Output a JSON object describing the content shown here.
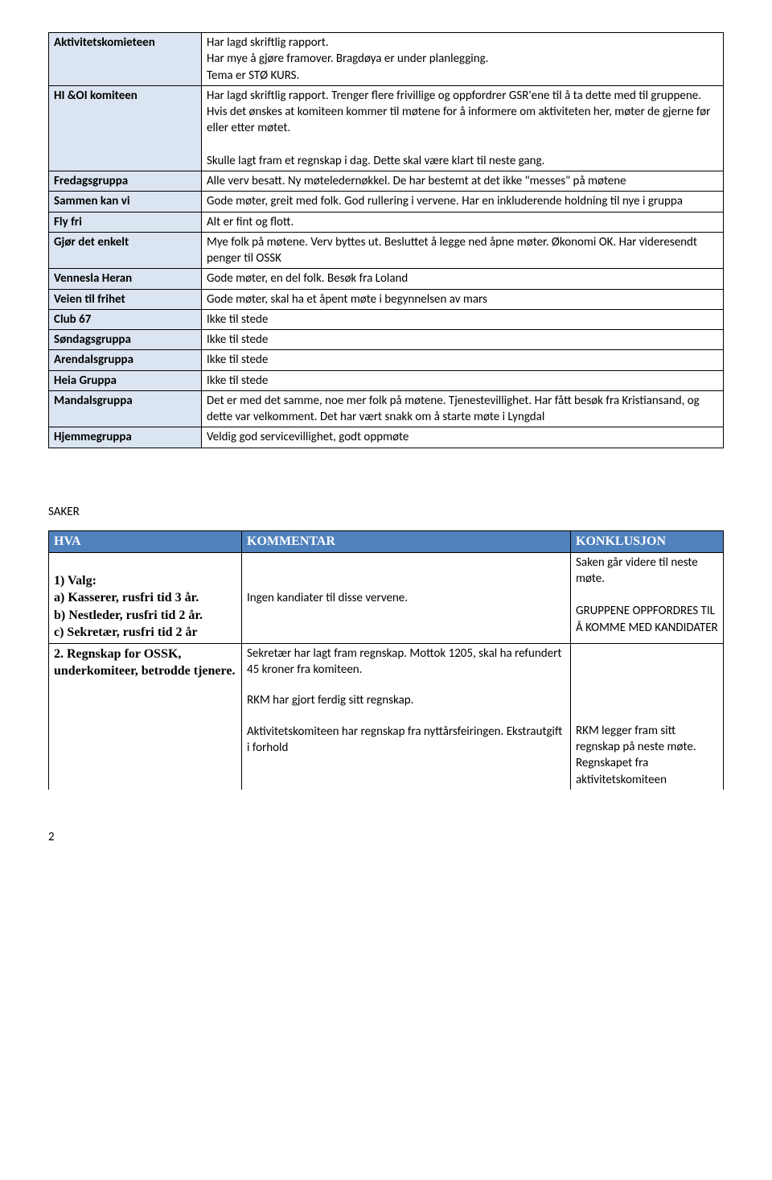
{
  "table1": {
    "rows": [
      {
        "label": "Aktivitetskomieteen",
        "text": "Har lagd skriftlig rapport.\nHar mye å gjøre framover.  Bragdøya er under planlegging.\nTema er STØ KURS."
      },
      {
        "label": "HI &OI komiteen",
        "text": "Har lagd skriftlig rapport.  Trenger flere frivillige og oppfordrer  GSR'ene til å ta dette med til gruppene.  Hvis det ønskes at komiteen kommer til møtene for å informere om aktiviteten her, møter de gjerne før eller etter møtet.\n\nSkulle lagt fram et regnskap i dag.  Dette skal være klart til neste gang."
      },
      {
        "label": "Fredagsgruppa",
        "text": "Alle verv besatt.  Ny møteledernøkkel.  De har bestemt at det ikke \"messes\" på møtene"
      },
      {
        "label": "Sammen kan vi",
        "text": "Gode møter, greit med folk.  God rullering i vervene.  Har en inkluderende holdning til nye i gruppa"
      },
      {
        "label": "Fly fri",
        "text": "Alt er fint og flott."
      },
      {
        "label": "Gjør det enkelt",
        "text": " Mye folk på møtene.  Verv byttes ut.  Besluttet å legge ned åpne møter.  Økonomi OK.  Har videresendt penger til OSSK"
      },
      {
        "label": "Vennesla Heran",
        "text": "Gode møter, en del folk.  Besøk fra Loland"
      },
      {
        "label": "Veien til frihet",
        "text": "Gode møter, skal ha et åpent møte i begynnelsen av mars"
      },
      {
        "label": "Club 67",
        "text": "Ikke til stede"
      },
      {
        "label": "Søndagsgruppa",
        "text": "Ikke til stede"
      },
      {
        "label": "Arendalsgruppa",
        "text": "Ikke til stede"
      },
      {
        "label": "Heia Gruppa",
        "text": "Ikke til stede"
      },
      {
        "label": "Mandalsgruppa",
        "text": "Det er med det samme, noe mer folk på møtene.  Tjenestevillighet.  Har fått besøk fra Kristiansand, og dette var velkomment.  Det har vært snakk om å starte møte i Lyngdal"
      },
      {
        "label": "Hjemmegruppa",
        "text": "Veldig god servicevillighet, godt oppmøte"
      }
    ]
  },
  "sectionLabel": "SAKER",
  "table2": {
    "headers": {
      "c1": "HVA",
      "c2": "KOMMENTAR",
      "c3": "KONKLUSJON"
    },
    "row1": {
      "hva": "1) Valg:\na) Kasserer, rusfri tid 3 år.\nb) Nestleder, rusfri tid 2 år.\nc) Sekretær, rusfri tid 2 år",
      "kommentar": "Ingen kandiater til disse vervene.",
      "konklusjon": "Saken går videre til neste møte.\n\nGRUPPENE OPPFORDRES TIL Å KOMME MED KANDIDATER"
    },
    "row2": {
      "hva": "2. Regnskap for OSSK, underkomiteer, betrodde tjenere.",
      "kommentar_a": "Sekretær har lagt fram regnskap. Mottok 1205, skal ha refundert 45 kroner fra komiteen.",
      "kommentar_b": "RKM har gjort ferdig sitt regnskap.",
      "kommentar_c": "Aktivitetskomiteen har regnskap fra nyttårsfeiringen.  Ekstrautgift i forhold",
      "konklusjon_b": "RKM legger fram sitt regnskap på neste møte.",
      "konklusjon_c": "Regnskapet fra aktivitetskomiteen"
    }
  },
  "pageNumber": "2"
}
